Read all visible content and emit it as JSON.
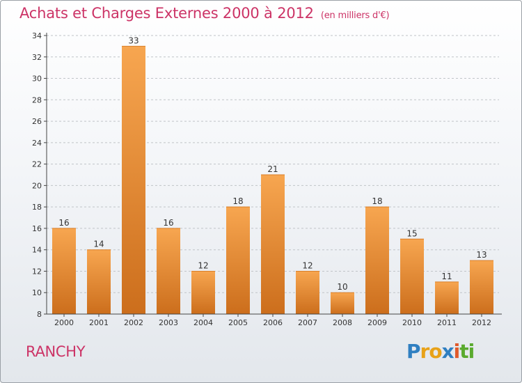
{
  "title": "Achats et Charges Externes 2000 à 2012",
  "subtitle": "(en milliers d'€)",
  "commune": "RANCHY",
  "logo": {
    "text": "Proxiti",
    "letters": [
      {
        "ch": "P",
        "color": "#2f7fc1"
      },
      {
        "ch": "r",
        "color": "#e8a219"
      },
      {
        "ch": "o",
        "color": "#e8a219"
      },
      {
        "ch": "x",
        "color": "#2f7fc1"
      },
      {
        "ch": "i",
        "color": "#e05a2b"
      },
      {
        "ch": "t",
        "color": "#5aaa2e"
      },
      {
        "ch": "i",
        "color": "#5aaa2e"
      }
    ]
  },
  "colors": {
    "title": "#cc3366",
    "bar_top": "#f7a650",
    "bar_bottom": "#cc6e1c",
    "grid": "#c0c4c8",
    "axis": "#444444"
  },
  "chart_data": {
    "type": "bar",
    "title": "Achats et Charges Externes 2000 à 2012",
    "subtitle": "(en milliers d'€)",
    "xlabel": "",
    "ylabel": "",
    "categories": [
      "2000",
      "2001",
      "2002",
      "2003",
      "2004",
      "2005",
      "2006",
      "2007",
      "2008",
      "2009",
      "2010",
      "2011",
      "2012"
    ],
    "values": [
      16,
      14,
      33,
      16,
      12,
      18,
      21,
      12,
      10,
      18,
      15,
      11,
      13
    ],
    "ylim": [
      8,
      34
    ],
    "yticks": [
      8,
      10,
      12,
      14,
      16,
      18,
      20,
      22,
      24,
      26,
      28,
      30,
      32,
      34
    ],
    "grid": "horizontal dashed",
    "data_labels": true
  }
}
